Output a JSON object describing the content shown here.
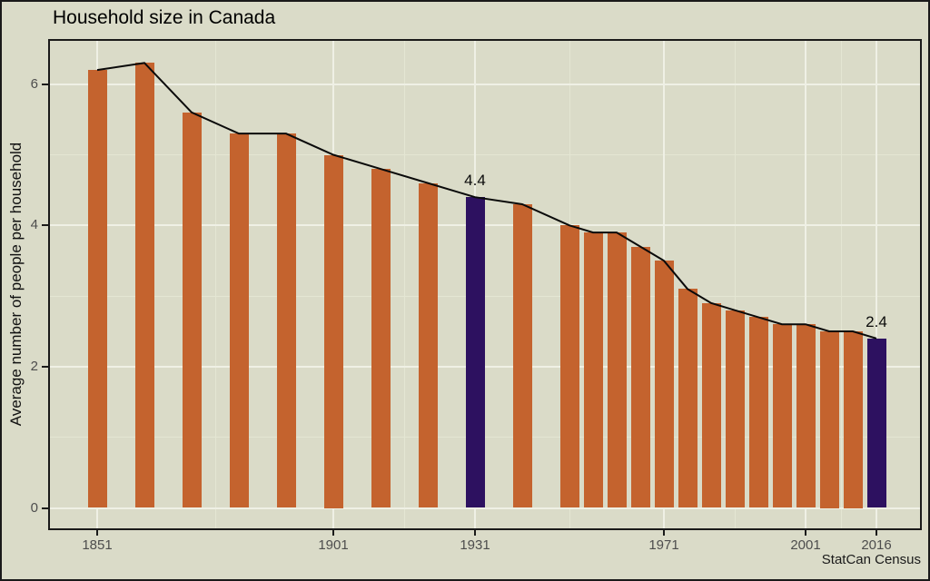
{
  "title": "Household size in Canada",
  "y_axis_title": "Average number of people per household",
  "caption": "StatCan Census",
  "colors": {
    "background": "#dadbc8",
    "bar": "#c4632e",
    "bar_highlight": "#2d1160",
    "trend_line": "#0a0a0a",
    "grid_major": "#eff0e5",
    "grid_minor": "#e4e6d3",
    "axis_text": "#4d4d4d",
    "border": "#1a1a1a"
  },
  "chart_data": {
    "type": "bar",
    "overlay": "line through bar tops",
    "x": [
      1851,
      1861,
      1871,
      1881,
      1891,
      1901,
      1911,
      1921,
      1931,
      1941,
      1951,
      1956,
      1961,
      1966,
      1971,
      1976,
      1981,
      1986,
      1991,
      1996,
      2001,
      2006,
      2011,
      2016
    ],
    "values": [
      6.2,
      6.3,
      5.6,
      5.3,
      5.3,
      5.0,
      4.8,
      4.6,
      4.4,
      4.3,
      4.0,
      3.9,
      3.9,
      3.7,
      3.5,
      3.1,
      2.9,
      2.8,
      2.7,
      2.6,
      2.6,
      2.5,
      2.5,
      2.4
    ],
    "highlight_x": [
      1931,
      2016
    ],
    "annotations": [
      {
        "x": 1931,
        "text": "4.4"
      },
      {
        "x": 2016,
        "text": "2.4"
      }
    ],
    "x_ticks": [
      1851,
      1901,
      1931,
      1971,
      2001,
      2016
    ],
    "y_ticks": [
      0,
      2,
      4,
      6
    ],
    "y_minor_ticks": [
      1,
      3,
      5
    ],
    "xlabel": "",
    "ylabel": "Average number of people per household",
    "ylim": [
      0,
      6.9
    ],
    "grid": "major and minor, light lines on beige panel",
    "legend": "none"
  }
}
